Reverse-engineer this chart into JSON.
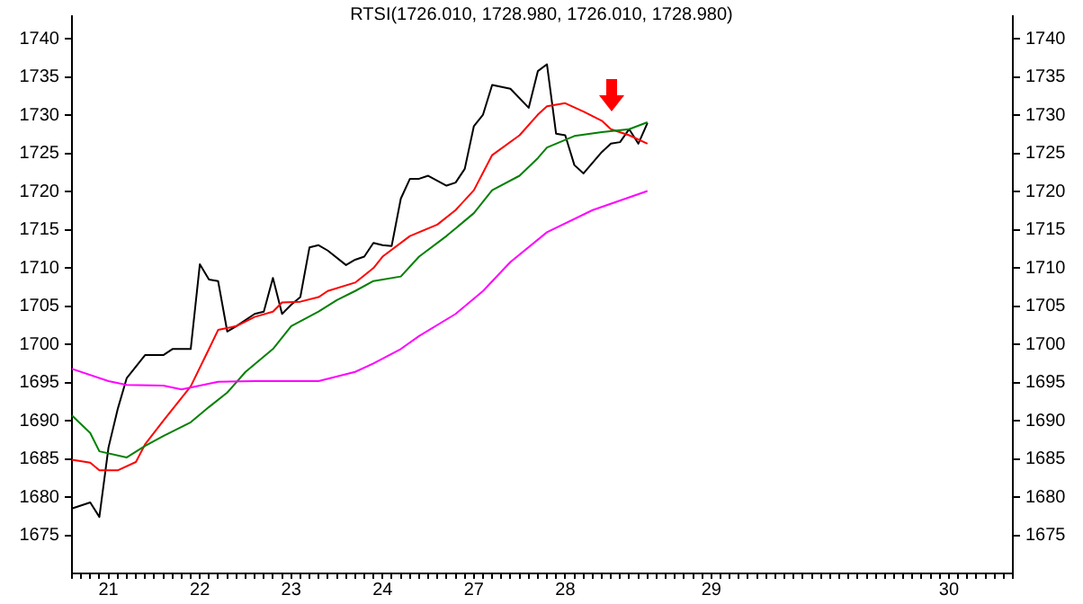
{
  "chart_data": {
    "type": "line",
    "title": "RTSI(1726.010, 1728.980, 1726.010, 1728.980)",
    "categories": [
      null,
      null,
      null,
      null,
      "21",
      null,
      null,
      null,
      null,
      null,
      null,
      null,
      null,
      null,
      "22",
      null,
      null,
      null,
      null,
      null,
      null,
      null,
      null,
      null,
      "23",
      null,
      null,
      null,
      null,
      null,
      null,
      null,
      null,
      null,
      "24",
      null,
      null,
      null,
      null,
      null,
      null,
      null,
      null,
      null,
      "27",
      null,
      null,
      null,
      null,
      null,
      null,
      null,
      null,
      null,
      "28",
      null,
      null,
      null,
      null,
      null,
      null,
      null,
      null,
      null,
      null,
      null,
      null,
      null,
      null,
      null,
      "29",
      null,
      null,
      null,
      null,
      null,
      null,
      null,
      null,
      null,
      null,
      null,
      null,
      null,
      null,
      null,
      null,
      null,
      null,
      null,
      null,
      null,
      null,
      null,
      null,
      null,
      "30",
      null,
      null,
      null,
      null,
      null,
      null,
      null
    ],
    "ylim": [
      1670,
      1743
    ],
    "yticks": [
      1675,
      1680,
      1685,
      1690,
      1695,
      1700,
      1705,
      1710,
      1715,
      1720,
      1725,
      1730,
      1735,
      1740
    ],
    "y2lim": [
      1670,
      1743
    ],
    "y2ticks": [
      1675,
      1680,
      1685,
      1690,
      1695,
      1700,
      1705,
      1710,
      1715,
      1720,
      1725,
      1730,
      1735,
      1740
    ],
    "grid": false,
    "legend": false,
    "marker": "none",
    "line_style": "solid",
    "series": [
      {
        "color": "#ff00ff",
        "values": [
          1696.8,
          null,
          null,
          null,
          1695.2,
          null,
          1694.7,
          null,
          null,
          null,
          1694.6,
          null,
          1694.1,
          null,
          null,
          null,
          1695.1,
          null,
          null,
          null,
          1695.2,
          null,
          null,
          null,
          null,
          null,
          null,
          1695.2,
          null,
          null,
          null,
          1696.4,
          null,
          1697.5,
          null,
          null,
          1699.4,
          null,
          1701.1,
          null,
          null,
          null,
          1704,
          null,
          null,
          1707,
          null,
          null,
          1710.8,
          null,
          null,
          null,
          1714.7,
          null,
          null,
          null,
          null,
          1717.6,
          null,
          null,
          null,
          null,
          null,
          1720.1,
          null,
          null,
          null,
          null,
          null,
          null,
          null,
          null,
          null,
          null,
          null,
          null,
          null,
          null,
          null,
          null,
          null,
          null,
          null,
          null,
          null,
          null,
          null,
          null,
          null,
          null,
          null,
          null,
          null,
          null,
          null,
          null,
          null,
          null,
          null,
          null,
          null,
          null,
          null,
          null
        ]
      },
      {
        "color": "#008000",
        "values": [
          1690.7,
          null,
          1688.4,
          1686,
          null,
          null,
          1685.2,
          null,
          1686.7,
          null,
          1688,
          null,
          null,
          1689.8,
          null,
          1691.8,
          null,
          1693.7,
          null,
          1696.4,
          null,
          null,
          1699.4,
          null,
          1702.4,
          null,
          null,
          1704.3,
          null,
          1705.8,
          null,
          1707,
          null,
          1708.3,
          null,
          null,
          1708.9,
          null,
          1711.5,
          null,
          null,
          1714.2,
          null,
          null,
          1717.2,
          null,
          1720.2,
          null,
          null,
          1722.1,
          null,
          1724.4,
          1725.8,
          null,
          null,
          1727.3,
          null,
          null,
          1727.8,
          null,
          null,
          1728.2,
          null,
          1729.1,
          null,
          null,
          null,
          null,
          null,
          null,
          null,
          null,
          null,
          null,
          null,
          null,
          null,
          null,
          null,
          null,
          null,
          null,
          null,
          null,
          null,
          null,
          null,
          null,
          null,
          null,
          null,
          null,
          null,
          null,
          null,
          null,
          null,
          null,
          null,
          null,
          null,
          null,
          null,
          null
        ]
      },
      {
        "color": "#ff0000",
        "values": [
          1684.9,
          null,
          1684.5,
          1683.5,
          null,
          1683.5,
          null,
          1684.6,
          1686.9,
          null,
          1690,
          null,
          null,
          1694.5,
          null,
          1699.4,
          1701.9,
          null,
          1702.4,
          null,
          1703.6,
          null,
          1704.3,
          1705.5,
          null,
          1705.6,
          null,
          1706.2,
          1707,
          null,
          null,
          1708.1,
          null,
          1710,
          1711.5,
          null,
          null,
          1714.2,
          null,
          null,
          1715.7,
          null,
          1717.6,
          null,
          1720.2,
          null,
          1724.8,
          null,
          null,
          1727.4,
          null,
          1730.1,
          1731.2,
          null,
          1731.6,
          null,
          1730.5,
          null,
          1729.3,
          1728.2,
          null,
          1727.4,
          null,
          1726.3,
          null,
          null,
          null,
          null,
          null,
          null,
          null,
          null,
          null,
          null,
          null,
          null,
          null,
          null,
          null,
          null,
          null,
          null,
          null,
          null,
          null,
          null,
          null,
          null,
          null,
          null,
          null,
          null,
          null,
          null,
          null,
          null,
          null,
          null,
          null,
          null,
          null,
          null,
          null,
          null
        ]
      },
      {
        "color": "#000000",
        "values": [
          1678.5,
          null,
          1679.3,
          1677.4,
          1686.5,
          1691.5,
          1695.6,
          null,
          1698.6,
          null,
          1698.6,
          1699.4,
          null,
          1699.4,
          1710.5,
          1708.5,
          1708.3,
          1701.7,
          1702.4,
          null,
          1704,
          1704.3,
          1708.7,
          1704,
          1705.2,
          1706.2,
          1712.7,
          1713,
          1712.3,
          null,
          1710.4,
          1711.1,
          1711.5,
          1713.3,
          1713,
          1712.9,
          1719.1,
          1721.7,
          1721.7,
          1722.1,
          null,
          1720.8,
          1721.2,
          1723,
          1728.6,
          1730.1,
          1734,
          null,
          1733.5,
          null,
          1731,
          1735.8,
          1736.7,
          1727.6,
          1727.4,
          1723.5,
          1722.4,
          null,
          1725.2,
          1726.3,
          1726.5,
          1728.2,
          1726.3,
          1729,
          null,
          null,
          null,
          null,
          null,
          null,
          null,
          null,
          null,
          null,
          null,
          null,
          null,
          null,
          null,
          null,
          null,
          null,
          null,
          null,
          null,
          null,
          null,
          null,
          null,
          null,
          null,
          null,
          null,
          null,
          null,
          null,
          null,
          null,
          null,
          null,
          null,
          null,
          null,
          null
        ]
      }
    ]
  }
}
